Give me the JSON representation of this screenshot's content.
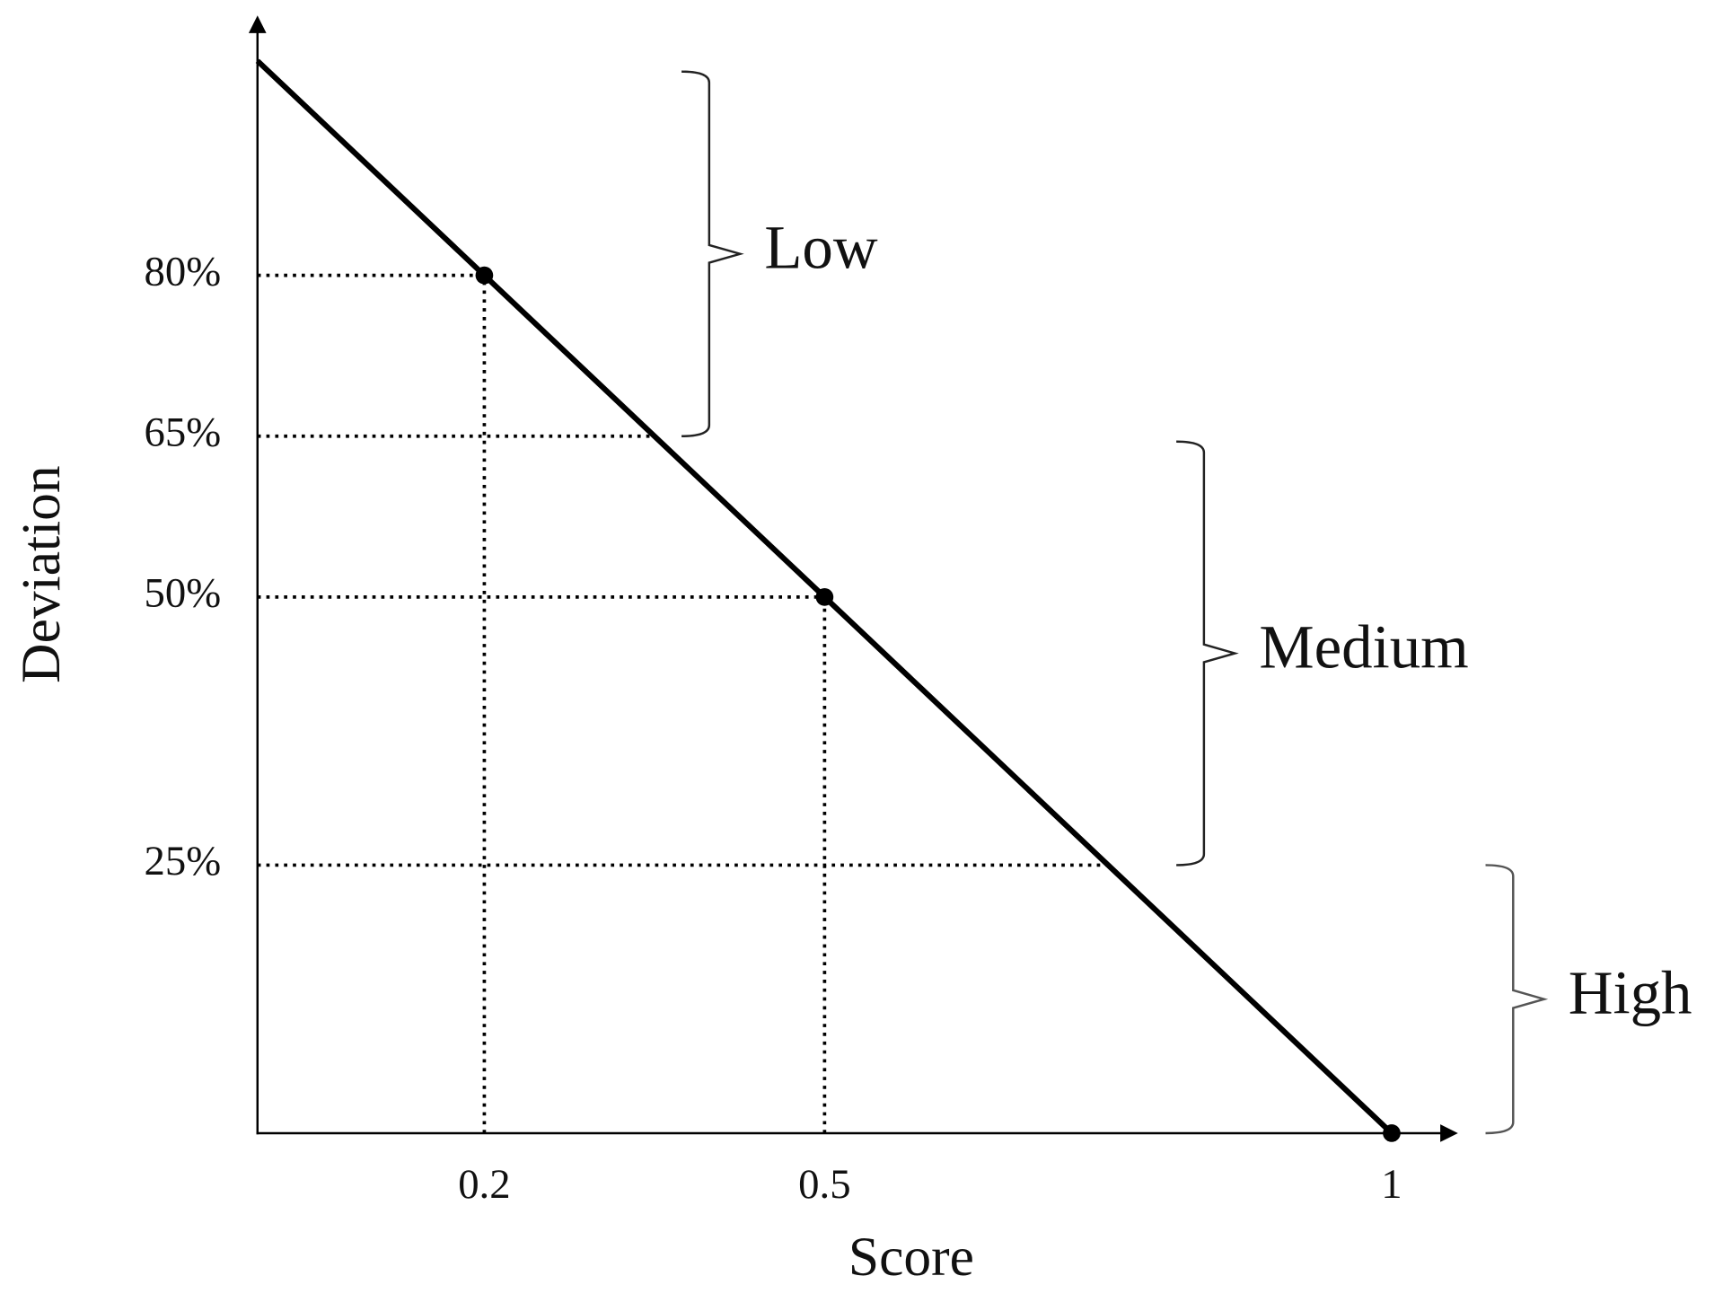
{
  "chart_data": {
    "type": "line",
    "x_label": "Score",
    "y_label": "Deviation",
    "xlim": [
      0,
      1.05
    ],
    "ylim": [
      0,
      103
    ],
    "xticks": [
      0.2,
      0.5,
      1
    ],
    "yticks": [
      {
        "value": 25,
        "label": "25%"
      },
      {
        "value": 50,
        "label": "50%"
      },
      {
        "value": 65,
        "label": "65%"
      },
      {
        "value": 80,
        "label": "80%"
      }
    ],
    "series": [
      {
        "x": [
          0,
          1
        ],
        "values": [
          100,
          0
        ],
        "color": "#000000"
      },
      {
        "x": [
          0.2,
          0.5,
          1
        ],
        "values": [
          80,
          50,
          0
        ],
        "color": "#000000",
        "markers": true
      }
    ],
    "bands": [
      {
        "label": "Low",
        "from": 65,
        "to": 99
      },
      {
        "label": "Medium",
        "from": 25,
        "to": 64.5
      },
      {
        "label": "High",
        "from": 0,
        "to": 25
      }
    ]
  }
}
